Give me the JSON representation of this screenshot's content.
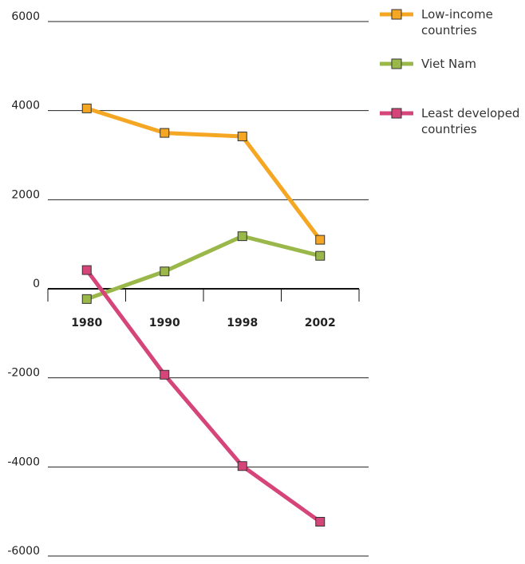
{
  "chart_data": {
    "type": "line",
    "categories": [
      "1980",
      "1990",
      "1998",
      "2002"
    ],
    "series": [
      {
        "name": "Low-income countries",
        "color": "#f5a623",
        "values": [
          4050,
          3500,
          3420,
          1100
        ]
      },
      {
        "name": "Viet Nam",
        "color": "#9ab84a",
        "values": [
          -230,
          390,
          1180,
          740
        ]
      },
      {
        "name": "Least developed countries",
        "color": "#d6457a",
        "values": [
          420,
          -1930,
          -3980,
          -5230
        ]
      }
    ],
    "yticks": [
      "6000",
      "4000",
      "2000",
      "0",
      "-2000",
      "-4000",
      "-6000"
    ],
    "ylim": [
      -6000,
      6000
    ],
    "grid": true,
    "legend_position": "top-right",
    "title": "",
    "xlabel": "",
    "ylabel": ""
  }
}
